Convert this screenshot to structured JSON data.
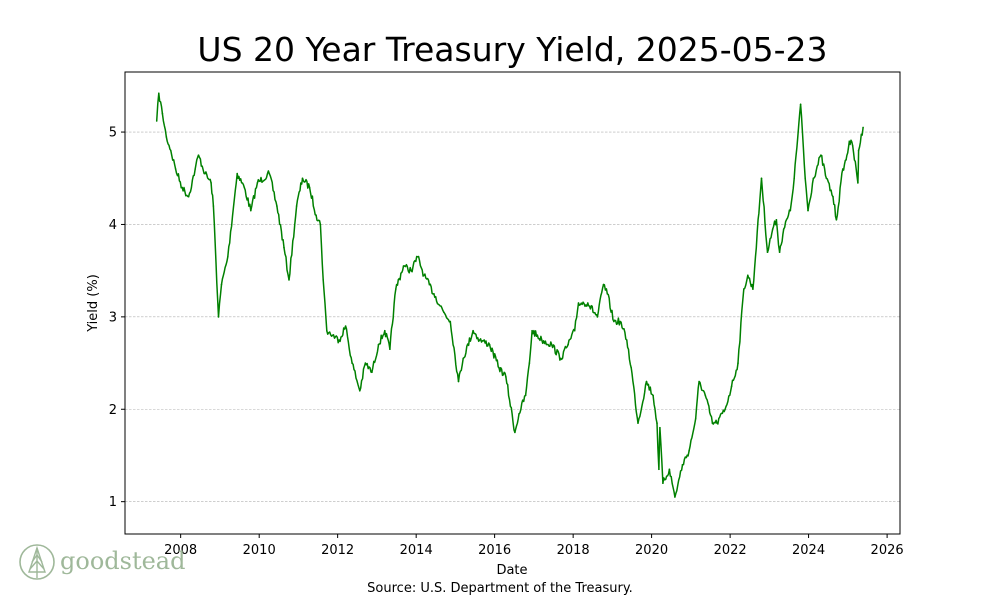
{
  "chart_data": {
    "type": "line",
    "title": "US 20 Year Treasury Yield, 2025-05-23",
    "xlabel": "Date",
    "ylabel": "Yield (%)",
    "xlim": [
      "2006-08-01",
      "2026-05-01"
    ],
    "ylim": [
      0.65,
      5.65
    ],
    "x_ticks": [
      "2008",
      "2010",
      "2012",
      "2014",
      "2016",
      "2018",
      "2020",
      "2022",
      "2024",
      "2026"
    ],
    "y_ticks": [
      "1",
      "2",
      "3",
      "4",
      "5"
    ],
    "grid": "horizontal dashed",
    "line_color": "#008000",
    "series": [
      {
        "x": [
          "2007-05-23",
          "2007-06-12",
          "2007-07-15",
          "2007-08-20",
          "2007-10-01",
          "2007-11-15",
          "2008-01-15",
          "2008-03-15",
          "2008-05-15",
          "2008-06-15",
          "2008-08-15",
          "2008-10-10",
          "2008-11-01",
          "2008-12-18",
          "2009-01-15",
          "2009-03-15",
          "2009-06-10",
          "2009-08-15",
          "2009-10-15",
          "2009-12-15",
          "2010-04-05",
          "2010-06-15",
          "2010-08-20",
          "2010-10-05",
          "2010-12-15",
          "2011-02-08",
          "2011-04-15",
          "2011-06-15",
          "2011-07-25",
          "2011-08-20",
          "2011-09-22",
          "2011-11-15",
          "2012-01-15",
          "2012-03-15",
          "2012-05-15",
          "2012-07-25",
          "2012-09-15",
          "2012-11-15",
          "2013-01-15",
          "2013-03-15",
          "2013-05-01",
          "2013-06-25",
          "2013-09-05",
          "2013-11-15",
          "2014-01-15",
          "2014-03-15",
          "2014-06-15",
          "2014-09-15",
          "2014-11-15",
          "2015-01-30",
          "2015-03-15",
          "2015-06-15",
          "2015-08-15",
          "2015-11-15",
          "2016-02-11",
          "2016-04-15",
          "2016-07-08",
          "2016-08-15",
          "2016-10-15",
          "2016-11-20",
          "2016-12-15",
          "2017-03-15",
          "2017-06-15",
          "2017-09-08",
          "2017-11-15",
          "2018-01-15",
          "2018-02-20",
          "2018-05-17",
          "2018-08-15",
          "2018-10-10",
          "2018-11-15",
          "2019-01-15",
          "2019-03-15",
          "2019-05-15",
          "2019-06-25",
          "2019-08-28",
          "2019-11-15",
          "2020-01-15",
          "2020-02-20",
          "2020-03-09",
          "2020-03-18",
          "2020-04-15",
          "2020-06-15",
          "2020-08-05",
          "2020-10-15",
          "2020-12-15",
          "2021-02-15",
          "2021-03-18",
          "2021-05-15",
          "2021-07-20",
          "2021-09-01",
          "2021-11-15",
          "2022-01-15",
          "2022-03-15",
          "2022-05-08",
          "2022-06-14",
          "2022-08-01",
          "2022-10-20",
          "2022-12-15",
          "2023-02-01",
          "2023-03-08",
          "2023-04-06",
          "2023-05-15",
          "2023-07-15",
          "2023-08-20",
          "2023-10-19",
          "2023-12-01",
          "2023-12-27",
          "2024-02-15",
          "2024-04-25",
          "2024-06-15",
          "2024-08-15",
          "2024-09-16",
          "2024-11-15",
          "2024-12-15",
          "2025-01-14",
          "2025-02-15",
          "2025-04-04",
          "2025-04-11",
          "2025-05-23"
        ],
        "values": [
          5.12,
          5.42,
          5.2,
          4.95,
          4.8,
          4.6,
          4.4,
          4.3,
          4.6,
          4.75,
          4.55,
          4.45,
          4.2,
          3.0,
          3.35,
          3.65,
          4.55,
          4.4,
          4.15,
          4.45,
          4.55,
          4.2,
          3.75,
          3.4,
          4.2,
          4.5,
          4.4,
          4.1,
          4.0,
          3.4,
          2.85,
          2.8,
          2.75,
          2.9,
          2.5,
          2.2,
          2.5,
          2.4,
          2.7,
          2.85,
          2.65,
          3.3,
          3.55,
          3.5,
          3.65,
          3.45,
          3.25,
          3.05,
          2.95,
          2.3,
          2.55,
          2.85,
          2.75,
          2.7,
          2.45,
          2.35,
          1.75,
          1.95,
          2.15,
          2.5,
          2.85,
          2.75,
          2.7,
          2.55,
          2.7,
          2.85,
          3.15,
          3.15,
          3.0,
          3.35,
          3.25,
          2.95,
          2.95,
          2.75,
          2.45,
          1.85,
          2.3,
          2.15,
          1.85,
          1.35,
          1.8,
          1.2,
          1.35,
          1.05,
          1.4,
          1.55,
          1.9,
          2.3,
          2.15,
          1.85,
          1.85,
          2.0,
          2.25,
          2.5,
          3.3,
          3.45,
          3.3,
          4.5,
          3.7,
          3.95,
          4.05,
          3.7,
          3.95,
          4.15,
          4.5,
          5.3,
          4.5,
          4.15,
          4.5,
          4.75,
          4.5,
          4.3,
          4.05,
          4.6,
          4.7,
          4.9,
          4.85,
          4.45,
          4.8,
          5.05
        ]
      }
    ]
  },
  "source_text": "Source: U.S. Department of the Treasury.",
  "logo": {
    "text": "goodstead",
    "color": "#9fb89a",
    "icon": "tree-icon"
  }
}
